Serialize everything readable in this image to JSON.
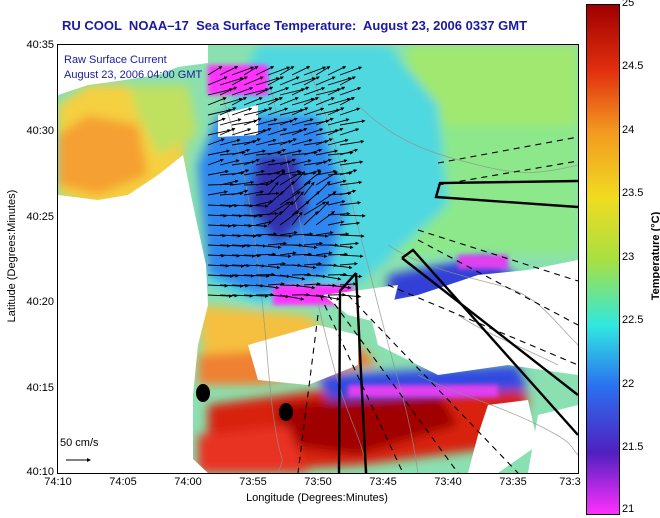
{
  "title": "RU COOL  NOAA–17  Sea Surface Temperature:  August 23, 2006 0337 GMT",
  "legend": {
    "line1": "Raw Surface Current",
    "line2": "August 23, 2006 04:00 GMT"
  },
  "scale_label": "50 cm/s",
  "xlabel": "Longitude (Degrees:Minutes)",
  "ylabel": "Latitude (Degrees:Minutes)",
  "y_ticks": [
    "40:35",
    "40:30",
    "40:25",
    "40:20",
    "40:15",
    "40:10"
  ],
  "x_ticks": [
    "74:10",
    "74:05",
    "74:00",
    "73:55",
    "73:50",
    "73:45",
    "73:40",
    "73:35",
    "73:3"
  ],
  "colorbar": {
    "label": "Temperature (°C)",
    "ticks": [
      "25",
      "24.5",
      "24",
      "23.5",
      "23",
      "22.5",
      "22",
      "21.5",
      "21"
    ],
    "colors": [
      "#a00000",
      "#e23010",
      "#f39a20",
      "#f0dc20",
      "#a8e040",
      "#30e8e0",
      "#2a70f0",
      "#5020c0",
      "#ff30ff"
    ]
  }
}
